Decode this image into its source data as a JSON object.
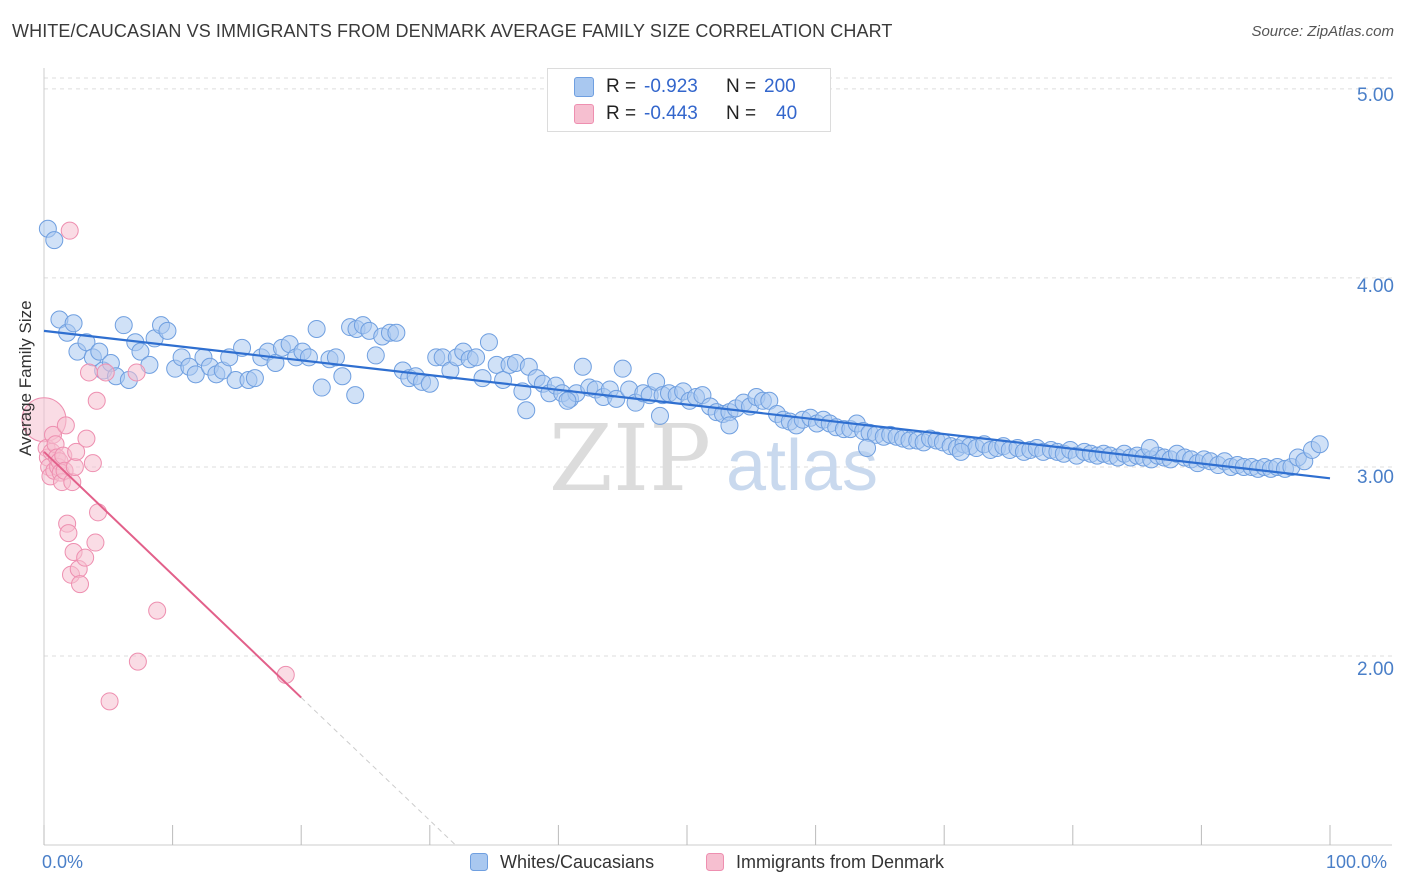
{
  "title": "WHITE/CAUCASIAN VS IMMIGRANTS FROM DENMARK AVERAGE FAMILY SIZE CORRELATION CHART",
  "source": "Source: ZipAtlas.com",
  "watermark": {
    "zip": "ZIP",
    "atlas": "atlas"
  },
  "legend_top": {
    "rows": [
      {
        "r_label": "R =",
        "r_value": "-0.923",
        "n_label": "N =",
        "n_value": "200"
      },
      {
        "r_label": "R =",
        "r_value": "-0.443",
        "n_label": "N =",
        "n_value": "40"
      }
    ]
  },
  "legend_bottom": [
    "Whites/Caucasians",
    "Immigrants from Denmark"
  ],
  "colors": {
    "blue_fill": "#a9c8f0",
    "blue_stroke": "#6f9fe0",
    "blue_line": "#2f6fd0",
    "pink_fill": "#f6bfd0",
    "pink_stroke": "#ee8fb0",
    "pink_line": "#e2608a",
    "grid": "#dddddd",
    "tick_label": "#4a7fc8"
  },
  "chart_data": {
    "type": "scatter",
    "title": "WHITE/CAUCASIAN VS IMMIGRANTS FROM DENMARK AVERAGE FAMILY SIZE CORRELATION CHART",
    "xlabel": "",
    "ylabel": "Average Family Size",
    "x_tick_labels": [
      "0.0%",
      "100.0%"
    ],
    "y_tick_labels": [
      "2.00",
      "3.00",
      "4.00",
      "5.00"
    ],
    "xlim": [
      0,
      100
    ],
    "ylim": [
      1.0,
      5.1
    ],
    "y_ticks": [
      2.0,
      3.0,
      4.0,
      5.0
    ],
    "series": [
      {
        "name": "Whites/Caucasians",
        "R": -0.923,
        "N": 200,
        "trend": {
          "x": [
            0,
            100
          ],
          "y": [
            3.72,
            2.94
          ]
        },
        "points": [
          [
            0.3,
            4.26
          ],
          [
            0.8,
            4.2
          ],
          [
            1.2,
            3.78
          ],
          [
            1.8,
            3.71
          ],
          [
            2.3,
            3.76
          ],
          [
            2.6,
            3.61
          ],
          [
            3.3,
            3.66
          ],
          [
            3.8,
            3.58
          ],
          [
            4.3,
            3.61
          ],
          [
            4.6,
            3.51
          ],
          [
            5.2,
            3.55
          ],
          [
            5.6,
            3.48
          ],
          [
            6.2,
            3.75
          ],
          [
            6.6,
            3.46
          ],
          [
            7.1,
            3.66
          ],
          [
            7.5,
            3.61
          ],
          [
            8.2,
            3.54
          ],
          [
            8.6,
            3.68
          ],
          [
            9.1,
            3.75
          ],
          [
            9.6,
            3.72
          ],
          [
            10.2,
            3.52
          ],
          [
            10.7,
            3.58
          ],
          [
            11.3,
            3.53
          ],
          [
            11.8,
            3.49
          ],
          [
            12.4,
            3.58
          ],
          [
            12.9,
            3.53
          ],
          [
            13.4,
            3.49
          ],
          [
            13.9,
            3.51
          ],
          [
            14.4,
            3.58
          ],
          [
            14.9,
            3.46
          ],
          [
            15.4,
            3.63
          ],
          [
            15.9,
            3.46
          ],
          [
            16.4,
            3.47
          ],
          [
            16.9,
            3.58
          ],
          [
            17.4,
            3.61
          ],
          [
            18.0,
            3.55
          ],
          [
            18.5,
            3.63
          ],
          [
            19.1,
            3.65
          ],
          [
            19.6,
            3.58
          ],
          [
            20.1,
            3.61
          ],
          [
            20.6,
            3.58
          ],
          [
            21.2,
            3.73
          ],
          [
            21.6,
            3.42
          ],
          [
            22.2,
            3.57
          ],
          [
            22.7,
            3.58
          ],
          [
            23.2,
            3.48
          ],
          [
            23.8,
            3.74
          ],
          [
            24.3,
            3.73
          ],
          [
            24.8,
            3.75
          ],
          [
            25.3,
            3.72
          ],
          [
            25.8,
            3.59
          ],
          [
            26.3,
            3.69
          ],
          [
            26.9,
            3.71
          ],
          [
            27.4,
            3.71
          ],
          [
            27.9,
            3.51
          ],
          [
            28.4,
            3.47
          ],
          [
            28.9,
            3.48
          ],
          [
            29.4,
            3.45
          ],
          [
            30.0,
            3.44
          ],
          [
            30.5,
            3.58
          ],
          [
            31.0,
            3.58
          ],
          [
            31.6,
            3.51
          ],
          [
            32.1,
            3.58
          ],
          [
            32.6,
            3.61
          ],
          [
            33.1,
            3.57
          ],
          [
            33.6,
            3.58
          ],
          [
            34.1,
            3.47
          ],
          [
            34.6,
            3.66
          ],
          [
            35.2,
            3.54
          ],
          [
            35.7,
            3.46
          ],
          [
            36.2,
            3.54
          ],
          [
            36.7,
            3.55
          ],
          [
            37.2,
            3.4
          ],
          [
            37.7,
            3.53
          ],
          [
            38.3,
            3.47
          ],
          [
            38.8,
            3.44
          ],
          [
            39.3,
            3.39
          ],
          [
            39.8,
            3.43
          ],
          [
            40.3,
            3.39
          ],
          [
            40.9,
            3.36
          ],
          [
            41.4,
            3.39
          ],
          [
            41.9,
            3.53
          ],
          [
            42.4,
            3.42
          ],
          [
            42.9,
            3.41
          ],
          [
            43.5,
            3.37
          ],
          [
            44.0,
            3.41
          ],
          [
            44.5,
            3.36
          ],
          [
            45.0,
            3.52
          ],
          [
            45.5,
            3.41
          ],
          [
            46.0,
            3.34
          ],
          [
            46.6,
            3.39
          ],
          [
            47.1,
            3.38
          ],
          [
            47.6,
            3.45
          ],
          [
            48.1,
            3.38
          ],
          [
            48.6,
            3.39
          ],
          [
            49.2,
            3.38
          ],
          [
            49.7,
            3.4
          ],
          [
            50.2,
            3.35
          ],
          [
            50.7,
            3.37
          ],
          [
            51.2,
            3.38
          ],
          [
            51.8,
            3.32
          ],
          [
            52.3,
            3.29
          ],
          [
            52.8,
            3.28
          ],
          [
            53.3,
            3.29
          ],
          [
            53.8,
            3.31
          ],
          [
            54.4,
            3.34
          ],
          [
            54.9,
            3.32
          ],
          [
            55.4,
            3.37
          ],
          [
            55.9,
            3.35
          ],
          [
            56.4,
            3.35
          ],
          [
            57.0,
            3.28
          ],
          [
            57.5,
            3.25
          ],
          [
            58.0,
            3.24
          ],
          [
            58.5,
            3.22
          ],
          [
            59.0,
            3.25
          ],
          [
            59.6,
            3.26
          ],
          [
            60.1,
            3.23
          ],
          [
            60.6,
            3.25
          ],
          [
            61.1,
            3.23
          ],
          [
            61.6,
            3.21
          ],
          [
            62.2,
            3.2
          ],
          [
            62.7,
            3.2
          ],
          [
            63.2,
            3.23
          ],
          [
            63.7,
            3.19
          ],
          [
            64.2,
            3.18
          ],
          [
            64.7,
            3.17
          ],
          [
            65.3,
            3.16
          ],
          [
            65.8,
            3.17
          ],
          [
            66.3,
            3.16
          ],
          [
            66.8,
            3.15
          ],
          [
            67.3,
            3.14
          ],
          [
            67.9,
            3.14
          ],
          [
            68.4,
            3.13
          ],
          [
            68.9,
            3.15
          ],
          [
            69.4,
            3.14
          ],
          [
            69.9,
            3.13
          ],
          [
            70.5,
            3.11
          ],
          [
            71.0,
            3.1
          ],
          [
            71.5,
            3.12
          ],
          [
            72.0,
            3.11
          ],
          [
            72.5,
            3.1
          ],
          [
            73.1,
            3.12
          ],
          [
            73.6,
            3.09
          ],
          [
            74.1,
            3.1
          ],
          [
            74.6,
            3.11
          ],
          [
            75.1,
            3.09
          ],
          [
            75.7,
            3.1
          ],
          [
            76.2,
            3.08
          ],
          [
            76.7,
            3.09
          ],
          [
            77.2,
            3.1
          ],
          [
            77.7,
            3.08
          ],
          [
            78.3,
            3.09
          ],
          [
            78.8,
            3.08
          ],
          [
            79.3,
            3.07
          ],
          [
            79.8,
            3.09
          ],
          [
            80.3,
            3.06
          ],
          [
            80.9,
            3.08
          ],
          [
            81.4,
            3.07
          ],
          [
            81.9,
            3.06
          ],
          [
            82.4,
            3.07
          ],
          [
            82.9,
            3.06
          ],
          [
            83.5,
            3.05
          ],
          [
            84.0,
            3.07
          ],
          [
            84.5,
            3.05
          ],
          [
            85.0,
            3.06
          ],
          [
            85.5,
            3.05
          ],
          [
            86.1,
            3.04
          ],
          [
            86.6,
            3.06
          ],
          [
            87.1,
            3.05
          ],
          [
            87.6,
            3.04
          ],
          [
            88.1,
            3.07
          ],
          [
            88.7,
            3.05
          ],
          [
            89.2,
            3.04
          ],
          [
            89.7,
            3.02
          ],
          [
            90.2,
            3.04
          ],
          [
            90.7,
            3.03
          ],
          [
            91.3,
            3.01
          ],
          [
            91.8,
            3.03
          ],
          [
            92.3,
            3.0
          ],
          [
            92.8,
            3.01
          ],
          [
            93.3,
            3.0
          ],
          [
            93.9,
            3.0
          ],
          [
            94.4,
            2.99
          ],
          [
            94.9,
            3.0
          ],
          [
            95.4,
            2.99
          ],
          [
            95.9,
            3.0
          ],
          [
            96.5,
            2.99
          ],
          [
            97.0,
            3.0
          ],
          [
            97.5,
            3.05
          ],
          [
            98.0,
            3.03
          ],
          [
            98.6,
            3.09
          ],
          [
            99.2,
            3.12
          ],
          [
            64.0,
            3.1
          ],
          [
            71.3,
            3.08
          ],
          [
            86.0,
            3.1
          ],
          [
            40.7,
            3.35
          ],
          [
            53.3,
            3.22
          ],
          [
            47.9,
            3.27
          ],
          [
            24.2,
            3.38
          ],
          [
            37.5,
            3.3
          ]
        ]
      },
      {
        "name": "Immigrants from Denmark",
        "R": -0.443,
        "N": 40,
        "trend": {
          "x": [
            0,
            20
          ],
          "y": [
            3.08,
            1.78
          ]
        },
        "trend_dashed": {
          "x": [
            20,
            32
          ],
          "y": [
            1.78,
            1.0
          ]
        },
        "points": [
          [
            0.0,
            3.25
          ],
          [
            0.2,
            3.1
          ],
          [
            0.3,
            3.05
          ],
          [
            0.4,
            3.0
          ],
          [
            0.5,
            2.95
          ],
          [
            0.6,
            3.08
          ],
          [
            0.7,
            3.17
          ],
          [
            0.8,
            2.98
          ],
          [
            0.9,
            3.12
          ],
          [
            1.0,
            3.05
          ],
          [
            1.1,
            3.0
          ],
          [
            1.2,
            3.03
          ],
          [
            1.3,
            2.97
          ],
          [
            1.4,
            2.92
          ],
          [
            1.5,
            3.06
          ],
          [
            1.6,
            2.98
          ],
          [
            1.7,
            3.22
          ],
          [
            1.8,
            2.7
          ],
          [
            1.9,
            2.65
          ],
          [
            2.0,
            4.25
          ],
          [
            2.1,
            2.43
          ],
          [
            2.2,
            2.92
          ],
          [
            2.3,
            2.55
          ],
          [
            2.4,
            3.0
          ],
          [
            2.5,
            3.08
          ],
          [
            2.7,
            2.46
          ],
          [
            2.8,
            2.38
          ],
          [
            3.2,
            2.52
          ],
          [
            3.3,
            3.15
          ],
          [
            3.5,
            3.5
          ],
          [
            3.8,
            3.02
          ],
          [
            4.0,
            2.6
          ],
          [
            4.1,
            3.35
          ],
          [
            4.2,
            2.76
          ],
          [
            4.8,
            3.5
          ],
          [
            5.1,
            1.76
          ],
          [
            7.2,
            3.5
          ],
          [
            7.3,
            1.97
          ],
          [
            8.8,
            2.24
          ],
          [
            18.8,
            1.9
          ]
        ]
      }
    ]
  }
}
